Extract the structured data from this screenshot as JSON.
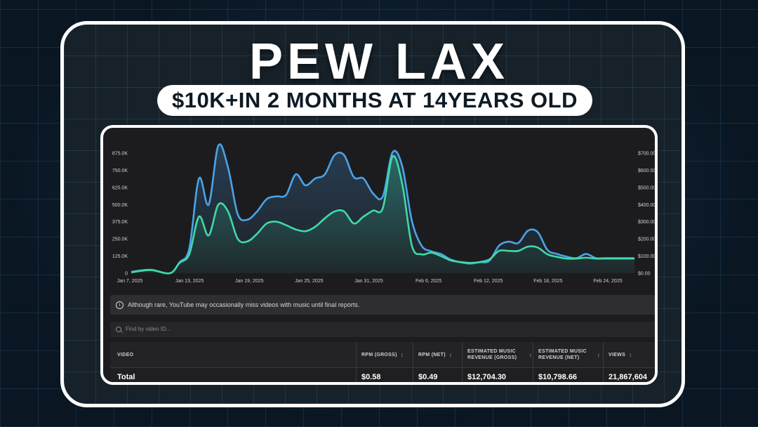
{
  "title": "PEW LAX",
  "subtitle": "$10K+IN 2 MONTHS AT 14YEARS OLD",
  "chart_data": {
    "type": "area",
    "x_tick_labels": [
      "Jan 7, 2025",
      "Jan 13, 2025",
      "Jan 19, 2025",
      "Jan 25, 2025",
      "Jan 31, 2025",
      "Feb 6, 2025",
      "Feb 12, 2025",
      "Feb 18, 2025",
      "Feb 24, 2025"
    ],
    "y_left_ticks": [
      "0",
      "125.0K",
      "250.0K",
      "375.0K",
      "500.0K",
      "625.0K",
      "750.0K",
      "875.0K"
    ],
    "y_right_ticks": [
      "$0.00",
      "$100.00",
      "$200.00",
      "$300.00",
      "$400.00",
      "$500.00",
      "$600.00",
      "$700.00"
    ],
    "y_left_range": [
      0,
      875000
    ],
    "y_right_range": [
      0,
      700
    ],
    "grid": false,
    "x_range": [
      0,
      52
    ],
    "series": [
      {
        "color": "#4aa3e8",
        "axis": "left",
        "x": [
          0,
          2,
          4,
          5,
          6,
          7,
          8,
          9,
          10,
          11,
          12,
          13,
          14,
          15,
          16,
          17,
          18,
          19,
          20,
          21,
          22,
          23,
          24,
          25,
          26,
          27,
          28,
          29,
          30,
          31,
          32,
          33,
          34,
          35,
          36,
          37,
          38,
          39,
          40,
          41,
          42,
          43,
          44,
          45,
          46,
          47,
          48,
          49,
          50,
          51,
          52
        ],
        "values": [
          10000,
          25000,
          0,
          80000,
          180000,
          690000,
          500000,
          930000,
          770000,
          430000,
          390000,
          450000,
          540000,
          560000,
          570000,
          720000,
          640000,
          690000,
          720000,
          860000,
          860000,
          700000,
          690000,
          580000,
          560000,
          880000,
          780000,
          380000,
          200000,
          160000,
          140000,
          100000,
          80000,
          70000,
          80000,
          90000,
          200000,
          230000,
          220000,
          310000,
          300000,
          170000,
          140000,
          120000,
          110000,
          140000,
          110000,
          110000,
          110000,
          110000,
          110000
        ]
      },
      {
        "color": "#3fd9a6",
        "axis": "right",
        "x": [
          0,
          2,
          4,
          5,
          6,
          7,
          8,
          9,
          10,
          11,
          12,
          13,
          14,
          15,
          16,
          17,
          18,
          19,
          20,
          21,
          22,
          23,
          24,
          25,
          26,
          27,
          28,
          29,
          30,
          31,
          32,
          33,
          34,
          35,
          36,
          37,
          38,
          39,
          40,
          41,
          42,
          43,
          44,
          45,
          46,
          47,
          48,
          49,
          50,
          51,
          52
        ],
        "values": [
          5,
          18,
          0,
          60,
          110,
          330,
          220,
          400,
          360,
          200,
          185,
          230,
          290,
          300,
          280,
          255,
          245,
          270,
          320,
          360,
          360,
          290,
          330,
          365,
          380,
          680,
          520,
          160,
          110,
          120,
          100,
          75,
          65,
          60,
          65,
          80,
          130,
          130,
          130,
          155,
          150,
          110,
          95,
          85,
          85,
          90,
          85,
          85,
          85,
          85,
          85
        ]
      }
    ]
  },
  "notice": {
    "icon": "info-icon",
    "text": "Although rare, YouTube may occasionally miss videos with music until final reports."
  },
  "search": {
    "placeholder": "Find by video ID..."
  },
  "table": {
    "columns": [
      {
        "label": "VIDEO",
        "sortable": false
      },
      {
        "label": "RPM (GROSS)",
        "sortable": true
      },
      {
        "label": "RPM (NET)",
        "sortable": true
      },
      {
        "label": "ESTIMATED MUSIC REVENUE (GROSS)",
        "sortable": true
      },
      {
        "label": "ESTIMATED MUSIC REVENUE (NET)",
        "sortable": true
      },
      {
        "label": "VIEWS",
        "sortable": true
      }
    ],
    "total_row": [
      "Total",
      "$0.58",
      "$0.49",
      "$12,704.30",
      "$10,798.66",
      "21,867,604"
    ]
  }
}
